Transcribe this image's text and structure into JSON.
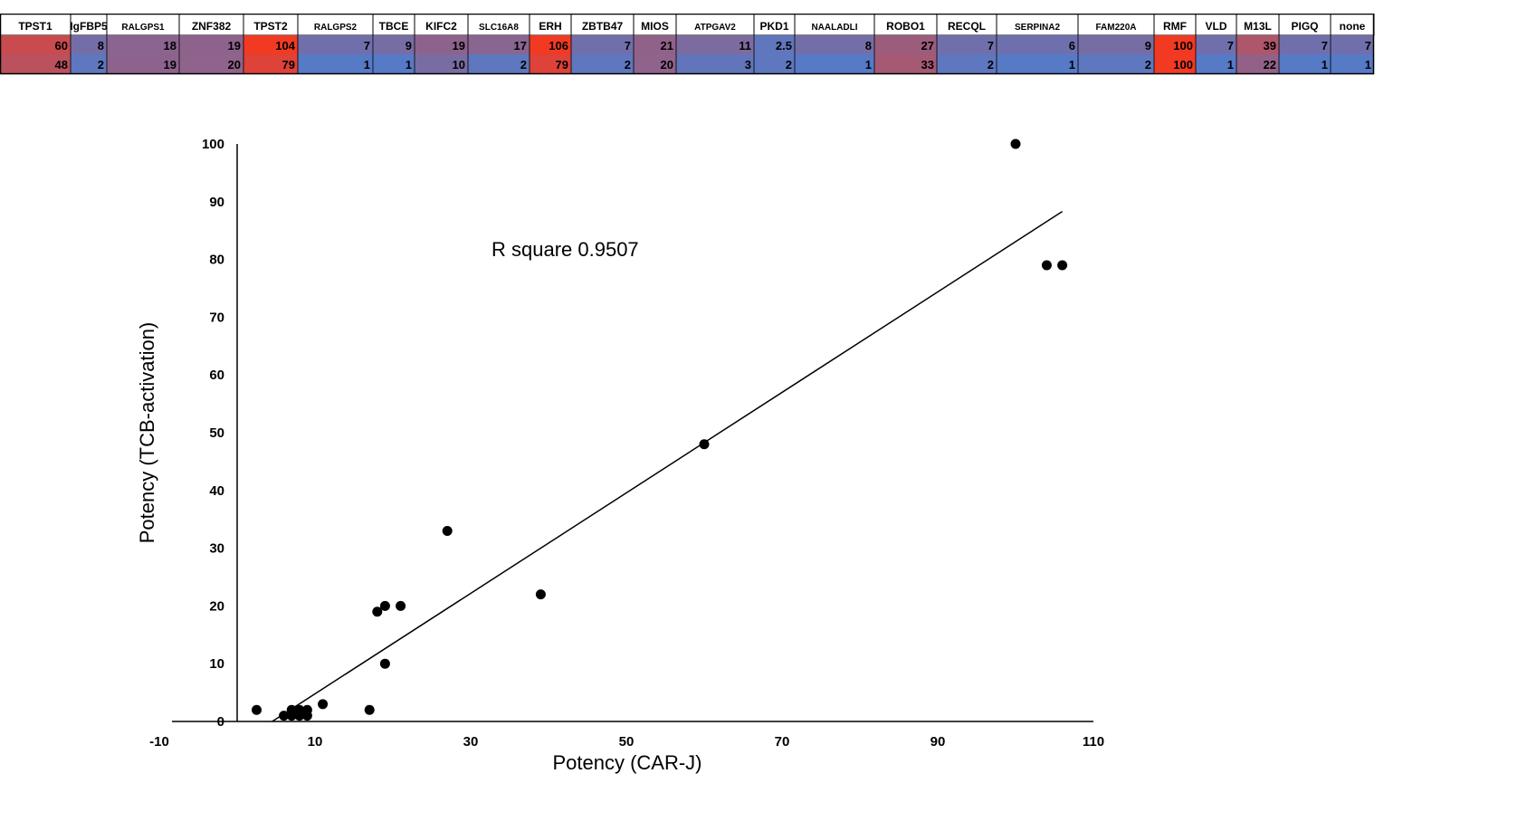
{
  "heat_table": {
    "headers": [
      "TPST1",
      "IgFBP5",
      "RALGPS1",
      "ZNF382",
      "TPST2",
      "RALGPS2",
      "TBCE",
      "KIFC2",
      "SLC16A8",
      "ERH",
      "ZBTB47",
      "MIOS",
      "ATPGAV2",
      "PKD1",
      "NAALADLI",
      "ROBO1",
      "RECQL",
      "SERPINA2",
      "FAM220A",
      "RMF",
      "VLD",
      "M13L",
      "PIGQ",
      "none"
    ],
    "row1": [
      "60",
      "8",
      "18",
      "19",
      "104",
      "7",
      "9",
      "19",
      "17",
      "106",
      "7",
      "21",
      "11",
      "2.5",
      "8",
      "27",
      "7",
      "6",
      "9",
      "100",
      "7",
      "39",
      "7",
      "7"
    ],
    "row2": [
      "48",
      "2",
      "19",
      "20",
      "79",
      "1",
      "1",
      "10",
      "2",
      "79",
      "2",
      "20",
      "3",
      "2",
      "1",
      "33",
      "2",
      "1",
      "2",
      "100",
      "1",
      "22",
      "1",
      "1"
    ],
    "colors": {
      "low": "#4a7fd4",
      "high": "#f23a22"
    }
  },
  "chart_data": {
    "type": "scatter",
    "xlabel": "Potency (CAR-J)",
    "ylabel": "Potency (TCB-activation)",
    "annotation": "R square 0.9507",
    "xlim": [
      -10,
      110
    ],
    "ylim": [
      0,
      100
    ],
    "xticks": [
      "-10",
      "10",
      "30",
      "50",
      "70",
      "90",
      "110"
    ],
    "yticks": [
      "0",
      "10",
      "20",
      "30",
      "40",
      "50",
      "60",
      "70",
      "80",
      "90",
      "100"
    ],
    "grid": false,
    "points": [
      {
        "x": 60,
        "y": 48
      },
      {
        "x": 8,
        "y": 2
      },
      {
        "x": 18,
        "y": 19
      },
      {
        "x": 19,
        "y": 20
      },
      {
        "x": 104,
        "y": 79
      },
      {
        "x": 7,
        "y": 1
      },
      {
        "x": 9,
        "y": 1
      },
      {
        "x": 19,
        "y": 10
      },
      {
        "x": 17,
        "y": 2
      },
      {
        "x": 106,
        "y": 79
      },
      {
        "x": 7,
        "y": 2
      },
      {
        "x": 21,
        "y": 20
      },
      {
        "x": 11,
        "y": 3
      },
      {
        "x": 2.5,
        "y": 2
      },
      {
        "x": 8,
        "y": 1
      },
      {
        "x": 27,
        "y": 33
      },
      {
        "x": 6,
        "y": 1
      },
      {
        "x": 9,
        "y": 2
      },
      {
        "x": 100,
        "y": 100
      },
      {
        "x": 39,
        "y": 22
      }
    ],
    "trendline": {
      "x1": 4.5,
      "y1": 0,
      "x2": 106,
      "y2": 88.3
    },
    "colors": {
      "points": "#000000",
      "line": "#000000"
    }
  }
}
